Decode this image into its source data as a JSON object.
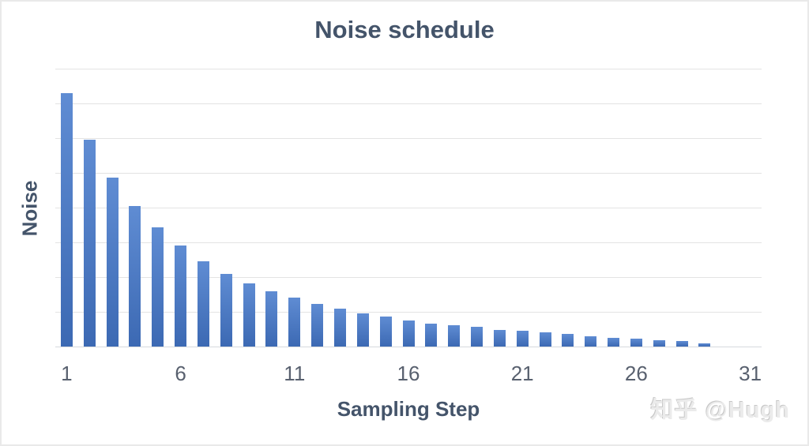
{
  "page": {
    "background": "#ffffff",
    "border_color": "#e9e9e9"
  },
  "watermark": {
    "text": "知乎 @Hugh"
  },
  "chart_data": {
    "type": "bar",
    "title": "Noise schedule",
    "xlabel": "Sampling Step",
    "ylabel": "Noise",
    "categories": [
      1,
      2,
      3,
      4,
      5,
      6,
      7,
      8,
      9,
      10,
      11,
      12,
      13,
      14,
      15,
      16,
      17,
      18,
      19,
      20,
      21,
      22,
      23,
      24,
      25,
      26,
      27,
      28,
      29,
      30,
      31
    ],
    "values": [
      14.6,
      11.9,
      9.75,
      8.1,
      6.85,
      5.8,
      4.9,
      4.2,
      3.65,
      3.2,
      2.8,
      2.44,
      2.16,
      1.93,
      1.71,
      1.52,
      1.34,
      1.23,
      1.12,
      0.96,
      0.89,
      0.8,
      0.73,
      0.61,
      0.52,
      0.46,
      0.36,
      0.3,
      0.2,
      0,
      0
    ],
    "x_tick_labels": [
      "1",
      "6",
      "11",
      "16",
      "21",
      "26",
      "31"
    ],
    "x_tick_positions": [
      1,
      6,
      11,
      16,
      21,
      26,
      31
    ],
    "ylim": [
      0,
      16
    ],
    "y_gridline_step": 2,
    "y_tick_labels_shown": false,
    "grid": "horizontal",
    "legend": "none",
    "bar_color_top": "#5f8cd3",
    "bar_color_bottom": "#3c69b3",
    "title_color": "#44546a",
    "axis_title_color": "#44546a",
    "tick_label_color": "#59616f",
    "gridline_color": "#e3e3e3"
  }
}
